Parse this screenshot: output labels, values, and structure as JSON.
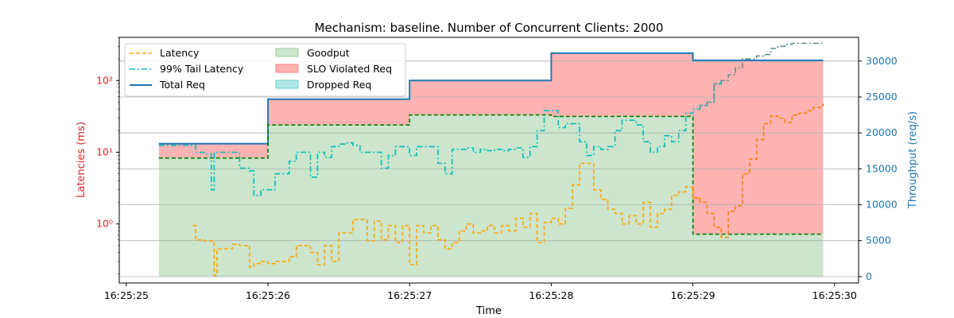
{
  "chart_data": {
    "type": "line",
    "title": "Mechanism: baseline. Number of Concurrent Clients: 2000",
    "xlabel": "Time",
    "ylabel_left": "Latencies (ms)",
    "ylabel_right": "Throughput (req/s)",
    "x_ticks": [
      "16:25:25",
      "16:25:26",
      "16:25:27",
      "16:25:28",
      "16:25:29",
      "16:25:30"
    ],
    "xlim": [
      -0.05,
      5.17
    ],
    "left_axis": {
      "scale": "log",
      "ylim": [
        0.15,
        400
      ],
      "tick_values": [
        1,
        10,
        100
      ],
      "tick_labels": [
        "10⁰",
        "10¹",
        "10²"
      ]
    },
    "right_axis": {
      "scale": "linear",
      "ylim": [
        -900,
        33300
      ],
      "tick_values": [
        0,
        5000,
        10000,
        15000,
        20000,
        25000,
        30000
      ],
      "tick_labels": [
        "0",
        "5000",
        "10000",
        "15000",
        "20000",
        "25000",
        "30000"
      ],
      "grid": true
    },
    "legend": {
      "placement": "top-left",
      "columns": 2,
      "entries": [
        "Latency",
        "99% Tail Latency",
        "Total Req",
        "Goodput",
        "SLO Violated Req",
        "Dropped Req"
      ]
    },
    "colors": {
      "latency": "#ffa500",
      "latency_late": "#ff7f0e",
      "tail_latency": "#00bfbf",
      "tail_latency_late": "#5f8f8f",
      "total_req": "#1f77b4",
      "goodput_fill": "#cce5cc",
      "goodput_line": "#008000",
      "slo_fill": "#ffb3b3",
      "dropped_fill": "#b0e8ea",
      "left_axis": "#d62728",
      "right_axis": "#1f77b4"
    },
    "series": [
      {
        "name": "Total Req",
        "x": [
          0.23,
          1.0,
          2.0,
          3.0,
          4.0,
          4.92
        ],
        "values": [
          18500,
          24700,
          27300,
          31100,
          30100,
          30100
        ]
      },
      {
        "name": "Goodput",
        "x": [
          0.23,
          1.0,
          2.0,
          3.0,
          4.0,
          4.92
        ],
        "values": [
          16500,
          21100,
          22500,
          22300,
          5900,
          5900
        ]
      },
      {
        "name": "SLO Violated Req",
        "x": [
          0.23,
          1.0,
          2.0,
          3.0,
          4.0,
          4.92
        ],
        "values": [
          2000,
          3600,
          4800,
          8800,
          24200,
          24200
        ]
      },
      {
        "name": "Dropped Req",
        "x": [
          0.23,
          4.92
        ],
        "values": [
          0,
          0
        ]
      },
      {
        "name": "Latency",
        "x": [
          0.47,
          0.49,
          0.55,
          0.6,
          0.62,
          0.64,
          0.7,
          0.75,
          0.8,
          0.87,
          0.9,
          0.95,
          1.0,
          1.05,
          1.1,
          1.15,
          1.2,
          1.25,
          1.3,
          1.35,
          1.4,
          1.45,
          1.5,
          1.55,
          1.6,
          1.65,
          1.7,
          1.75,
          1.8,
          1.85,
          1.9,
          1.95,
          2.0,
          2.05,
          2.1,
          2.15,
          2.2,
          2.25,
          2.3,
          2.35,
          2.4,
          2.45,
          2.5,
          2.55,
          2.6,
          2.65,
          2.7,
          2.75,
          2.8,
          2.85,
          2.9,
          2.95,
          3.0,
          3.05,
          3.1,
          3.15,
          3.2,
          3.25,
          3.3,
          3.35,
          3.4,
          3.45,
          3.5,
          3.55,
          3.6,
          3.65,
          3.7,
          3.75,
          3.8,
          3.85,
          3.9,
          3.95,
          4.0,
          4.05,
          4.1,
          4.15,
          4.2,
          4.25,
          4.3,
          4.35,
          4.4,
          4.45,
          4.5,
          4.55,
          4.6,
          4.65,
          4.7,
          4.75,
          4.8,
          4.85,
          4.9,
          4.92
        ],
        "values": [
          0.95,
          0.6,
          0.58,
          0.58,
          0.19,
          0.45,
          0.45,
          0.52,
          0.5,
          0.25,
          0.28,
          0.3,
          0.28,
          0.3,
          0.3,
          0.35,
          0.5,
          0.5,
          0.4,
          0.27,
          0.5,
          0.3,
          0.75,
          0.75,
          1.15,
          1.15,
          0.58,
          1.1,
          0.6,
          0.95,
          0.55,
          0.95,
          0.27,
          0.95,
          0.75,
          0.95,
          0.6,
          0.45,
          0.55,
          0.8,
          1.0,
          0.75,
          0.8,
          0.95,
          0.75,
          0.95,
          0.8,
          1.2,
          0.9,
          1.4,
          0.55,
          1.05,
          1.2,
          1.0,
          1.65,
          3.5,
          7.0,
          7.0,
          3.0,
          2.2,
          1.6,
          1.4,
          1.0,
          1.3,
          1.0,
          2.0,
          0.9,
          1.4,
          1.6,
          2.5,
          2.8,
          3.3,
          2.3,
          2.0,
          1.4,
          0.9,
          0.65,
          1.5,
          1.8,
          5.0,
          8.0,
          15.0,
          25.0,
          32.0,
          30.0,
          26.0,
          33.0,
          35.0,
          38.0,
          42.0,
          45.0,
          48.0
        ]
      },
      {
        "name": "99% Tail Latency",
        "x": [
          0.23,
          0.47,
          0.49,
          0.55,
          0.6,
          0.62,
          0.64,
          0.7,
          0.8,
          0.87,
          0.9,
          0.95,
          1.0,
          1.05,
          1.1,
          1.15,
          1.2,
          1.25,
          1.3,
          1.35,
          1.4,
          1.45,
          1.5,
          1.55,
          1.6,
          1.65,
          1.7,
          1.75,
          1.8,
          1.85,
          1.9,
          1.95,
          2.0,
          2.05,
          2.1,
          2.15,
          2.2,
          2.25,
          2.3,
          2.35,
          2.4,
          2.45,
          2.5,
          2.55,
          2.6,
          2.65,
          2.7,
          2.75,
          2.8,
          2.85,
          2.9,
          2.95,
          3.0,
          3.05,
          3.1,
          3.15,
          3.2,
          3.25,
          3.3,
          3.35,
          3.4,
          3.45,
          3.5,
          3.55,
          3.6,
          3.65,
          3.7,
          3.75,
          3.8,
          3.85,
          3.9,
          3.95,
          4.0,
          4.05,
          4.1,
          4.15,
          4.2,
          4.25,
          4.3,
          4.35,
          4.4,
          4.45,
          4.5,
          4.55,
          4.6,
          4.65,
          4.7,
          4.75,
          4.8,
          4.85,
          4.9,
          4.92
        ],
        "values": [
          12.5,
          12.5,
          10.0,
          9.5,
          3.0,
          10.0,
          10.0,
          10.0,
          6.0,
          5.5,
          2.5,
          3.0,
          3.0,
          5.0,
          5.0,
          7.5,
          10.0,
          10.0,
          4.5,
          10.0,
          8.5,
          12.0,
          13.0,
          13.5,
          12.5,
          10.0,
          10.0,
          10.0,
          6.0,
          9.0,
          12.0,
          12.0,
          9.0,
          12.0,
          12.0,
          12.0,
          7.0,
          5.0,
          11.0,
          11.0,
          11.5,
          10.0,
          11.0,
          10.5,
          11.0,
          10.5,
          11.0,
          11.5,
          8.5,
          12.0,
          20.0,
          38.0,
          38.0,
          22.0,
          25.0,
          25.0,
          14.0,
          9.0,
          12.0,
          11.0,
          12.0,
          20.0,
          28.0,
          28.0,
          24.0,
          14.0,
          10.0,
          12.0,
          17.0,
          14.0,
          20.0,
          35.0,
          40.0,
          45.0,
          50.0,
          90.0,
          100.0,
          120.0,
          150.0,
          200.0,
          200.0,
          220.0,
          230.0,
          280.0,
          300.0,
          320.0,
          330.0,
          330.0,
          330.0,
          330.0,
          330.0,
          330.0
        ]
      }
    ]
  }
}
